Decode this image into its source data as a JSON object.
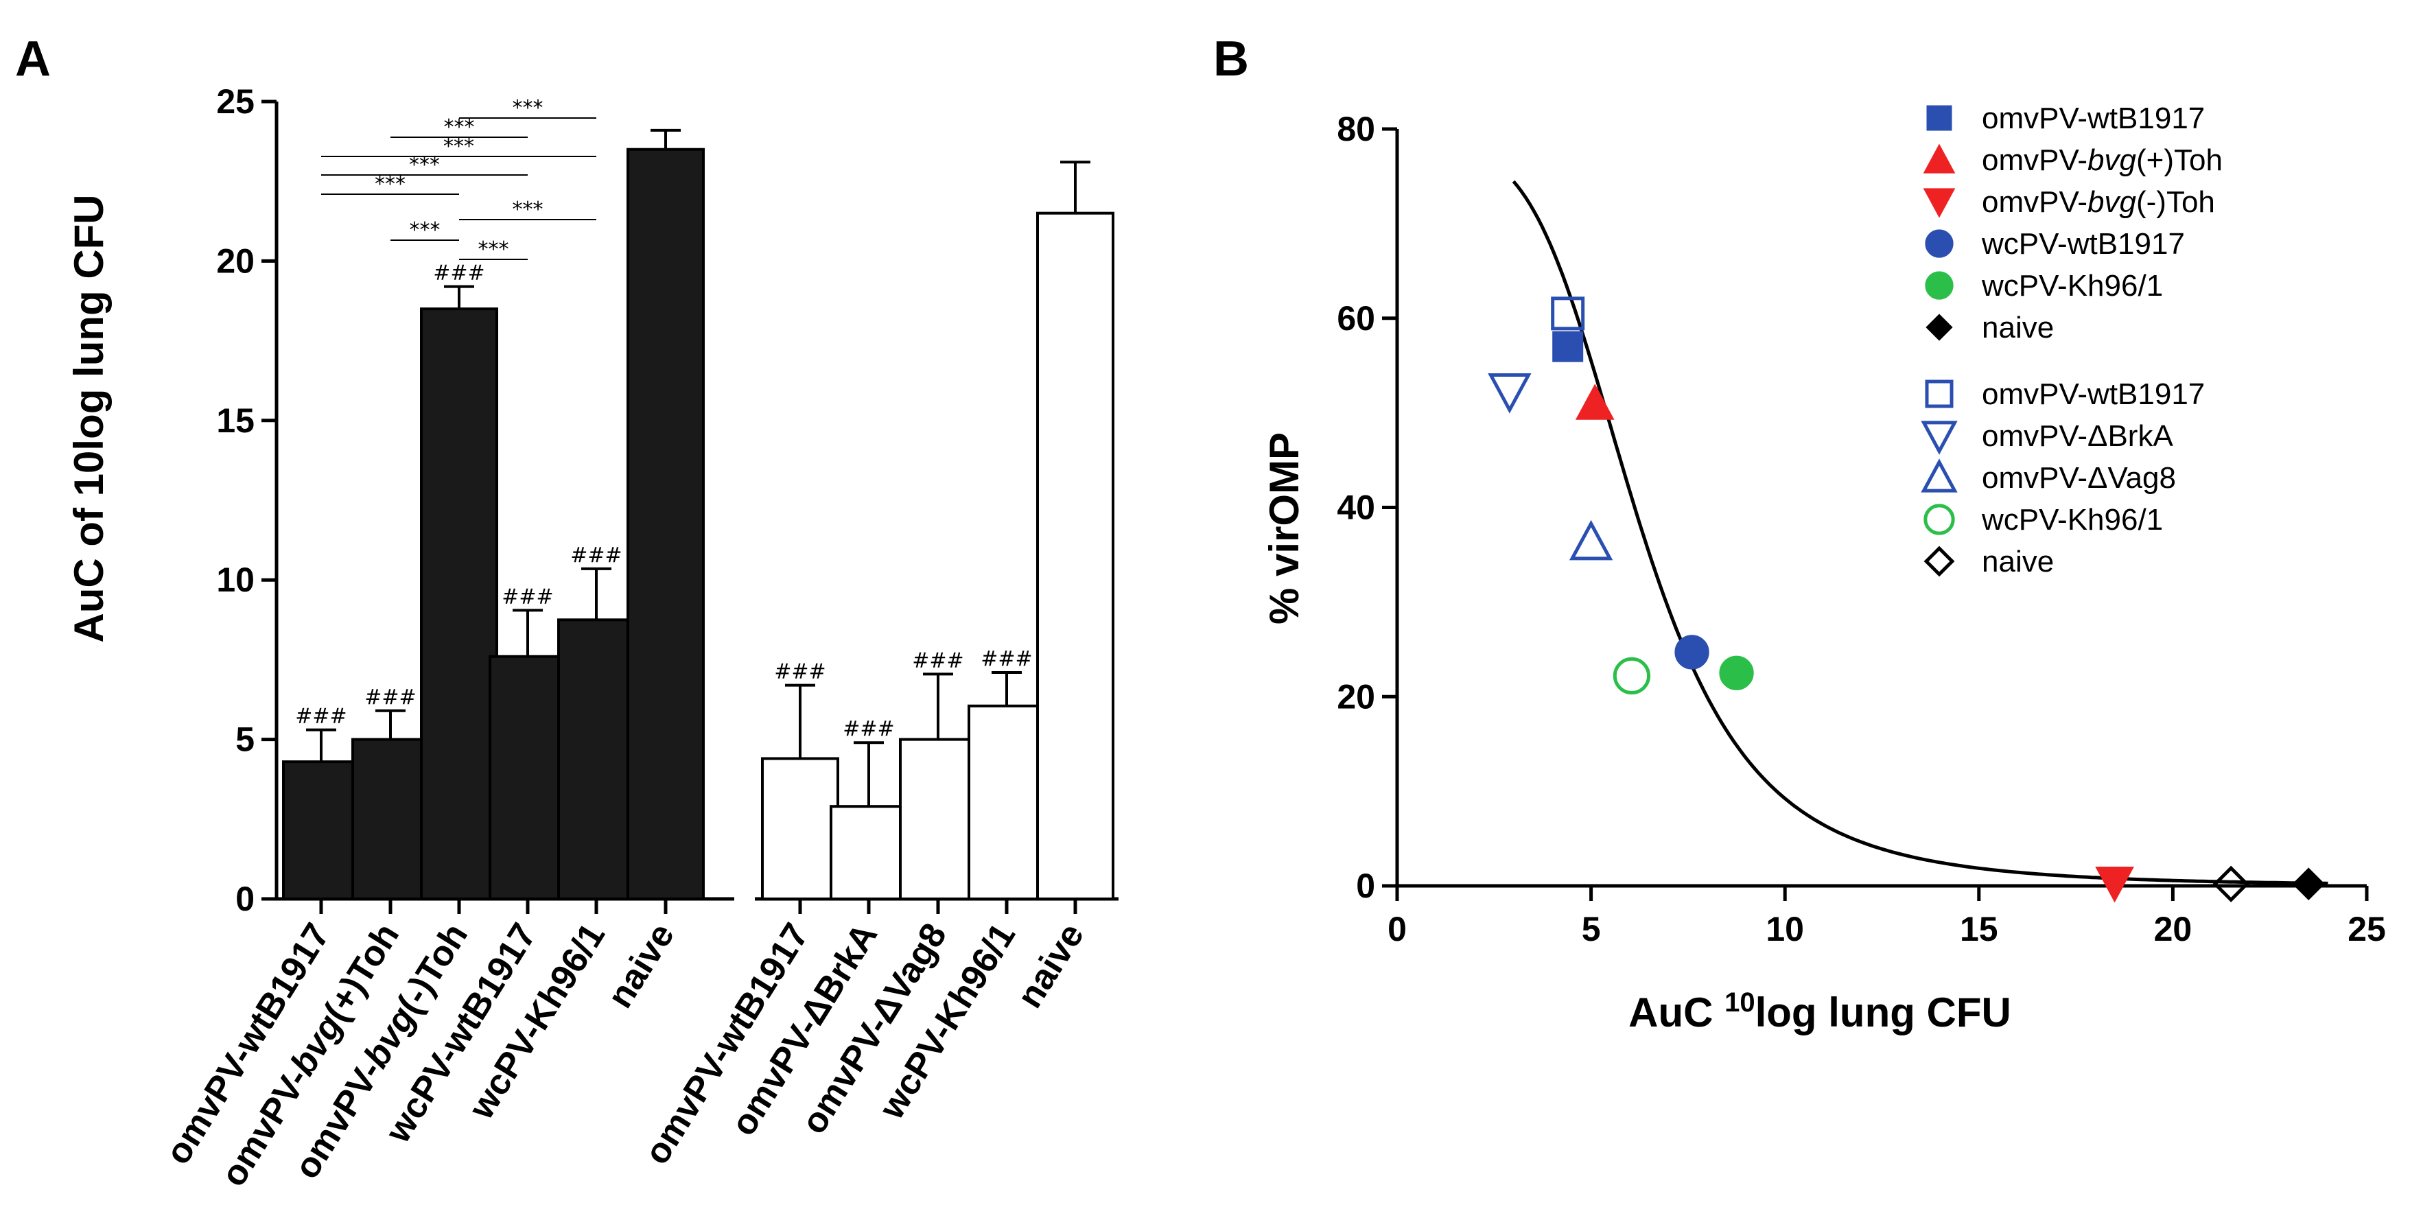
{
  "chart_data": [
    {
      "panel": "A",
      "type": "bar",
      "title": "",
      "xlabel": "",
      "ylabel": "AuC of 10log lung CFU",
      "ylim": [
        0,
        25
      ],
      "yticks": [
        "0",
        "5",
        "10",
        "15",
        "20",
        "25"
      ],
      "bars": [
        {
          "label": "omvPV-wtB1917",
          "label_pre": "omvPV-",
          "label_ital": "",
          "label_post": "wtB1917",
          "value": 4.3,
          "error": 1.0,
          "fill": "#1a1a1a",
          "group": 1,
          "annot": "###"
        },
        {
          "label": "omvPV-bvg(+)Toh",
          "label_pre": "omvPV-",
          "label_ital": "bvg",
          "label_post": "(+)Toh",
          "value": 5.0,
          "error": 0.9,
          "fill": "#1a1a1a",
          "group": 1,
          "annot": "###"
        },
        {
          "label": "omvPV-bvg(-)Toh",
          "label_pre": "omvPV-",
          "label_ital": "bvg",
          "label_post": "(-)Toh",
          "value": 18.5,
          "error": 0.7,
          "fill": "#1a1a1a",
          "group": 1,
          "annot": "###"
        },
        {
          "label": "wcPV-wtB1917",
          "label_pre": "wcPV-",
          "label_ital": "",
          "label_post": "wtB1917",
          "value": 7.6,
          "error": 1.45,
          "fill": "#1a1a1a",
          "group": 1,
          "annot": "###"
        },
        {
          "label": "wcPV-Kh96/1",
          "label_pre": "wcPV-",
          "label_ital": "",
          "label_post": "Kh96/1",
          "value": 8.75,
          "error": 1.6,
          "fill": "#1a1a1a",
          "group": 1,
          "annot": "###"
        },
        {
          "label": "naive",
          "label_pre": "",
          "label_ital": "",
          "label_post": "naive",
          "value": 23.5,
          "error": 0.6,
          "fill": "#1a1a1a",
          "group": 1,
          "annot": ""
        },
        {
          "label": "omvPV-wtB1917",
          "label_pre": "omvPV-",
          "label_ital": "",
          "label_post": "wtB1917",
          "value": 4.4,
          "error": 2.3,
          "fill": "#ffffff",
          "group": 2,
          "annot": "###"
        },
        {
          "label": "omvPV-ΔBrkA",
          "label_pre": "omvPV-",
          "label_ital": "",
          "label_post": "ΔBrkA",
          "value": 2.9,
          "error": 2.0,
          "fill": "#ffffff",
          "group": 2,
          "annot": "###"
        },
        {
          "label": "omvPV-ΔVag8",
          "label_pre": "omvPV-",
          "label_ital": "",
          "label_post": "ΔVag8",
          "value": 5.0,
          "error": 2.05,
          "fill": "#ffffff",
          "group": 2,
          "annot": "###"
        },
        {
          "label": "wcPV-Kh96/1",
          "label_pre": "wcPV-",
          "label_ital": "",
          "label_post": "Kh96/1",
          "value": 6.05,
          "error": 1.05,
          "fill": "#ffffff",
          "group": 2,
          "annot": "###"
        },
        {
          "label": "naive",
          "label_pre": "",
          "label_ital": "",
          "label_post": "naive",
          "value": 21.5,
          "error": 1.6,
          "fill": "#ffffff",
          "group": 2,
          "annot": ""
        }
      ],
      "significance": [
        {
          "from": 2,
          "to": 4,
          "text": "***"
        },
        {
          "from": 1,
          "to": 3,
          "text": "***"
        },
        {
          "from": 0,
          "to": 4,
          "text": "***"
        },
        {
          "from": 0,
          "to": 3,
          "text": "***"
        },
        {
          "from": 0,
          "to": 2,
          "text": "***"
        },
        {
          "from": 2,
          "to": 4,
          "text": "***"
        },
        {
          "from": 1,
          "to": 2,
          "text": "***"
        },
        {
          "from": 2,
          "to": 3,
          "text": "***"
        }
      ]
    },
    {
      "panel": "B",
      "type": "scatter",
      "title": "",
      "xlabel_pre": "AuC ",
      "xlabel_sup": "10",
      "xlabel_post": "log lung CFU",
      "ylabel": "% virOMP",
      "xlim": [
        0,
        25
      ],
      "ylim": [
        0,
        80
      ],
      "xticks": [
        0,
        5,
        10,
        15,
        20,
        25
      ],
      "yticks": [
        0,
        20,
        40,
        60,
        80
      ],
      "fit_curve": {
        "type": "sigmoid",
        "top": 78,
        "ec50": 6.2,
        "hill": 4.2,
        "x_from": 3.0,
        "x_to": 24.0
      },
      "series": [
        {
          "name": "omvPV-wtB1917",
          "name_pre": "omvPV-",
          "name_ital": "",
          "name_post": "wtB1917",
          "marker": "square",
          "filled": true,
          "color": "#2a4fb0",
          "points": [
            [
              4.4,
              57.0
            ]
          ]
        },
        {
          "name": "omvPV-bvg(+)Toh",
          "name_pre": "omvPV-",
          "name_ital": "bvg",
          "name_post": "(+)Toh",
          "marker": "triangle-up",
          "filled": true,
          "color": "#ee2222",
          "points": [
            [
              5.1,
              51.0
            ]
          ]
        },
        {
          "name": "omvPV-bvg(-)Toh",
          "name_pre": "omvPV-",
          "name_ital": "bvg",
          "name_post": "(-)Toh",
          "marker": "triangle-down",
          "filled": true,
          "color": "#ee2222",
          "points": [
            [
              18.5,
              0.3
            ]
          ]
        },
        {
          "name": "wcPV-wtB1917",
          "name_pre": "wcPV-",
          "name_ital": "",
          "name_post": "wtB1917",
          "marker": "circle",
          "filled": true,
          "color": "#2a4fb0",
          "points": [
            [
              7.6,
              24.7
            ]
          ]
        },
        {
          "name": "wcPV-Kh96/1",
          "name_pre": "wcPV-",
          "name_ital": "",
          "name_post": "Kh96/1",
          "marker": "circle",
          "filled": true,
          "color": "#2bbf4a",
          "points": [
            [
              8.75,
              22.5
            ]
          ]
        },
        {
          "name": "naive",
          "name_pre": "",
          "name_ital": "",
          "name_post": "naive",
          "marker": "diamond",
          "filled": true,
          "color": "#000000",
          "points": [
            [
              23.5,
              0.2
            ]
          ]
        },
        {
          "name": "omvPV-wtB1917",
          "name_pre": "omvPV-",
          "name_ital": "",
          "name_post": "wtB1917",
          "marker": "square",
          "filled": false,
          "color": "#2a4fb0",
          "points": [
            [
              4.4,
              60.5
            ]
          ]
        },
        {
          "name": "omvPV-ΔBrkA",
          "name_pre": "omvPV-",
          "name_ital": "",
          "name_post": "ΔBrkA",
          "marker": "triangle-down",
          "filled": false,
          "color": "#2a4fb0",
          "points": [
            [
              2.9,
              52.3
            ]
          ]
        },
        {
          "name": "omvPV-ΔVag8",
          "name_pre": "omvPV-",
          "name_ital": "",
          "name_post": "ΔVag8",
          "marker": "triangle-up",
          "filled": false,
          "color": "#2a4fb0",
          "points": [
            [
              5.0,
              36.3
            ]
          ]
        },
        {
          "name": "wcPV-Kh96/1",
          "name_pre": "wcPV-",
          "name_ital": "",
          "name_post": "Kh96/1",
          "marker": "circle",
          "filled": false,
          "color": "#2bbf4a",
          "points": [
            [
              6.05,
              22.2
            ]
          ]
        },
        {
          "name": "naive",
          "name_pre": "",
          "name_ital": "",
          "name_post": "naive",
          "marker": "diamond",
          "filled": false,
          "color": "#000000",
          "points": [
            [
              21.5,
              0.2
            ]
          ]
        }
      ]
    }
  ]
}
